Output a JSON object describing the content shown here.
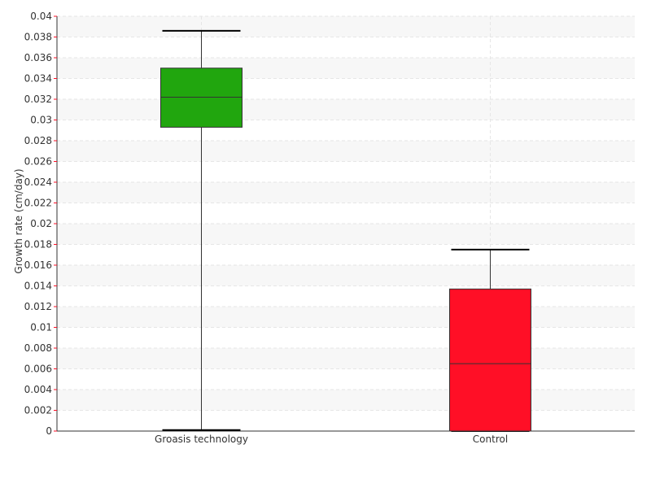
{
  "chart_data": {
    "type": "boxplot",
    "title": "",
    "xlabel": "",
    "ylabel": "Growth rate (cm/day)",
    "ylim": [
      0,
      0.04
    ],
    "y_ticks": [
      "0",
      "0.002",
      "0.004",
      "0.006",
      "0.008",
      "0.01",
      "0.012",
      "0.014",
      "0.016",
      "0.018",
      "0.02",
      "0.022",
      "0.024",
      "0.026",
      "0.028",
      "0.03",
      "0.032",
      "0.034",
      "0.036",
      "0.038",
      "0.04"
    ],
    "categories": [
      "Groasis technology",
      "Control"
    ],
    "boxes": [
      {
        "category": "Groasis technology",
        "min": 0.0001,
        "q1": 0.0293,
        "median": 0.0322,
        "q3": 0.035,
        "max": 0.0386,
        "color": "#21a60e"
      },
      {
        "category": "Control",
        "min": 0.0,
        "q1": 0.0,
        "median": 0.0065,
        "q3": 0.0137,
        "max": 0.0175,
        "color": "#ff0f26"
      }
    ],
    "grid": true,
    "legend": "none"
  }
}
